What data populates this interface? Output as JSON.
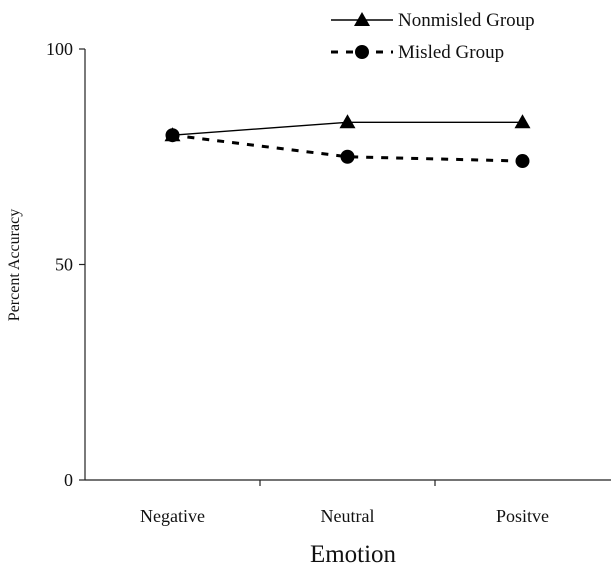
{
  "chart_data": {
    "type": "line",
    "categories": [
      "Negative",
      "Neutral",
      "Positve"
    ],
    "series": [
      {
        "name": "Nonmisled Group",
        "values": [
          80,
          83,
          83
        ],
        "marker": "triangle",
        "line_style": "solid",
        "color": "#000000"
      },
      {
        "name": "Misled Group",
        "values": [
          80,
          75,
          74
        ],
        "marker": "circle",
        "line_style": "dashed",
        "color": "#000000"
      }
    ],
    "xlabel": "Emotion",
    "ylabel": "Percent Accuracy",
    "ylim": [
      0,
      100
    ],
    "yticks": [
      0,
      50,
      100
    ],
    "grid": false,
    "legend_position": "top-right"
  }
}
